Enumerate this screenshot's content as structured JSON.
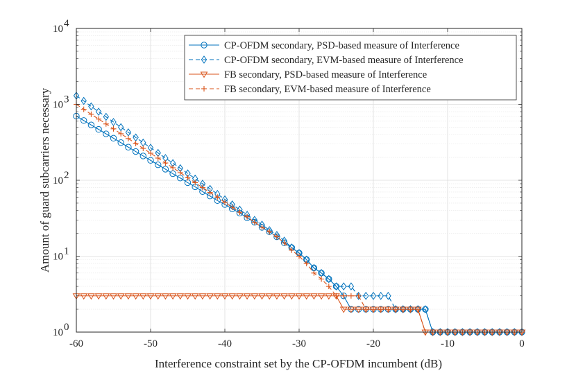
{
  "chart_data": {
    "type": "line",
    "title": "",
    "xlabel": "Interference constraint set by the CP-OFDM incumbent (dB)",
    "ylabel": "Amount of guard subcarriers necessary",
    "xlim": [
      -60,
      0
    ],
    "ylim": [
      1,
      10000
    ],
    "yscale": "log",
    "grid": true,
    "legend_position": "top-right",
    "x_ticks": [
      -60,
      -50,
      -40,
      -30,
      -20,
      -10,
      0
    ],
    "x_tick_labels": [
      "-60",
      "-50",
      "-40",
      "-30",
      "-20",
      "-10",
      "0"
    ],
    "y_tick_mantissa": [
      "10",
      "10",
      "10",
      "10",
      "10"
    ],
    "y_tick_exponents": [
      "0",
      "1",
      "2",
      "3",
      "4"
    ],
    "x": [
      -60,
      -59,
      -58,
      -57,
      -56,
      -55,
      -54,
      -53,
      -52,
      -51,
      -50,
      -49,
      -48,
      -47,
      -46,
      -45,
      -44,
      -43,
      -42,
      -41,
      -40,
      -39,
      -38,
      -37,
      -36,
      -35,
      -34,
      -33,
      -32,
      -31,
      -30,
      -29,
      -28,
      -27,
      -26,
      -25,
      -24,
      -23,
      -22,
      -21,
      -20,
      -19,
      -18,
      -17,
      -16,
      -15,
      -14,
      -13,
      -12,
      -11,
      -10,
      -9,
      -8,
      -7,
      -6,
      -5,
      -4,
      -3,
      -2,
      -1,
      0
    ],
    "series": [
      {
        "name": "CP-OFDM secondary, PSD-based measure of Interference",
        "color": "#0072BD",
        "line": "solid",
        "marker": "circle",
        "values": [
          700,
          612,
          535,
          468,
          409,
          358,
          313,
          273,
          239,
          209,
          183,
          160,
          140,
          122,
          107,
          93,
          82,
          71,
          62,
          54,
          48,
          42,
          37,
          32,
          28,
          24,
          21,
          18,
          15,
          13,
          11,
          9,
          7,
          6,
          5,
          4,
          3,
          2,
          2,
          2,
          2,
          2,
          2,
          2,
          2,
          2,
          2,
          2,
          1,
          1,
          1,
          1,
          1,
          1,
          1,
          1,
          1,
          1,
          1,
          1,
          1
        ]
      },
      {
        "name": "CP-OFDM secondary, EVM-based measure of Interference",
        "color": "#0072BD",
        "line": "dashed",
        "marker": "diamond",
        "values": [
          1300,
          1110,
          940,
          800,
          685,
          585,
          500,
          428,
          366,
          313,
          268,
          229,
          196,
          168,
          144,
          123,
          105,
          90,
          77,
          66,
          56,
          48,
          41,
          35,
          30,
          26,
          22,
          19,
          16,
          13,
          11,
          9,
          7,
          6,
          5,
          4,
          4,
          4,
          3,
          3,
          3,
          3,
          3,
          2,
          2,
          2,
          2,
          2,
          1,
          1,
          1,
          1,
          1,
          1,
          1,
          1,
          1,
          1,
          1,
          1,
          1
        ]
      },
      {
        "name": "FB secondary, PSD-based measure of Interference",
        "color": "#D95319",
        "line": "solid",
        "marker": "triangle-down",
        "values": [
          3,
          3,
          3,
          3,
          3,
          3,
          3,
          3,
          3,
          3,
          3,
          3,
          3,
          3,
          3,
          3,
          3,
          3,
          3,
          3,
          3,
          3,
          3,
          3,
          3,
          3,
          3,
          3,
          3,
          3,
          3,
          3,
          3,
          3,
          3,
          3,
          2,
          2,
          2,
          2,
          2,
          2,
          2,
          2,
          2,
          2,
          2,
          1,
          1,
          1,
          1,
          1,
          1,
          1,
          1,
          1,
          1,
          1,
          1,
          1,
          1
        ]
      },
      {
        "name": "FB secondary, EVM-based measure of Interference",
        "color": "#D95319",
        "line": "dashed",
        "marker": "plus",
        "values": [
          1000,
          860,
          740,
          640,
          552,
          476,
          410,
          354,
          305,
          263,
          227,
          196,
          169,
          146,
          126,
          108,
          93,
          80,
          69,
          60,
          51,
          44,
          38,
          33,
          28,
          24,
          21,
          18,
          15,
          12,
          10,
          8,
          6,
          5,
          4,
          3,
          3,
          3,
          3,
          2,
          2,
          2,
          2,
          2,
          2,
          2,
          2,
          1,
          1,
          1,
          1,
          1,
          1,
          1,
          1,
          1,
          1,
          1,
          1,
          1,
          1
        ]
      }
    ]
  }
}
